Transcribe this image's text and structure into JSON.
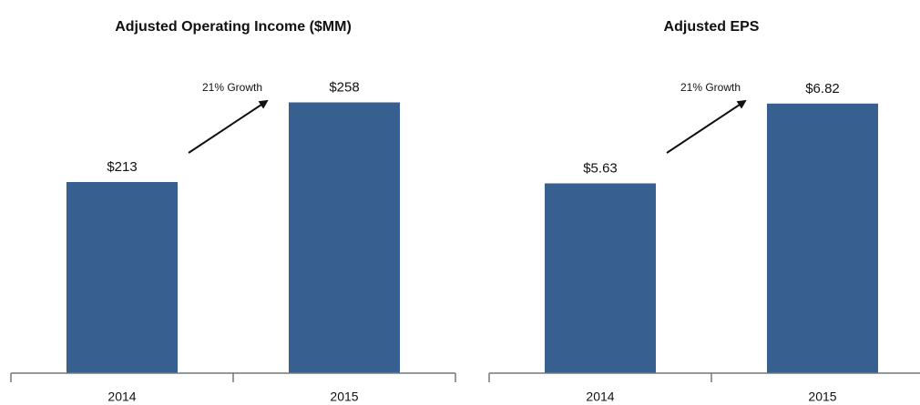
{
  "chart_data": [
    {
      "type": "bar",
      "title": "Adjusted Operating Income ($MM)",
      "categories": [
        "2014",
        "2015"
      ],
      "values": [
        213,
        258
      ],
      "value_labels": [
        "$213",
        "$258"
      ],
      "color": "#375f8f",
      "ylim": [
        105,
        285
      ],
      "annotation": "21% Growth"
    },
    {
      "type": "bar",
      "title": "Adjusted EPS",
      "categories": [
        "2014",
        "2015"
      ],
      "values": [
        5.63,
        6.82
      ],
      "value_labels": [
        "$5.63",
        "$6.82"
      ],
      "color": "#375f8f",
      "ylim": [
        2.8,
        7.55
      ],
      "annotation": "21% Growth"
    }
  ]
}
